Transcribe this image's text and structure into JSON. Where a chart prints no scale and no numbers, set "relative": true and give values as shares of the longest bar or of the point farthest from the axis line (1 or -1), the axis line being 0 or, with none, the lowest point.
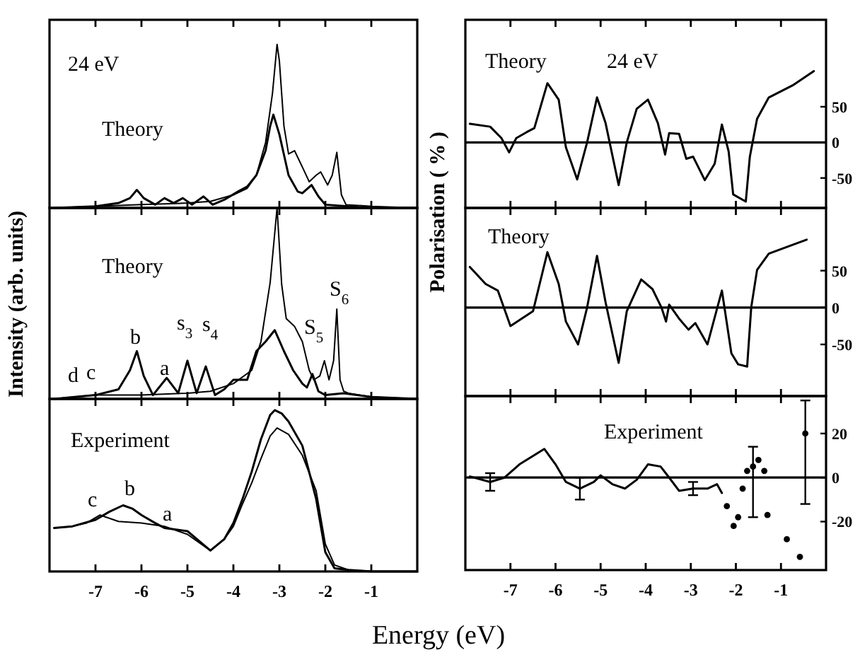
{
  "chart_data": [
    {
      "type": "line",
      "relative": true,
      "tick_labels": false,
      "xlim": [
        -8,
        0
      ],
      "xticks": [
        -7,
        -6,
        -5,
        -4,
        -3,
        -2,
        -1
      ],
      "annotations": [
        "24 eV",
        "Theory"
      ],
      "series": [
        {
          "color": "#000000",
          "x": [
            -7.9,
            -7,
            -6.5,
            -6.25,
            -6.1,
            -5.95,
            -5.7,
            -5.5,
            -5.3,
            -5.1,
            -4.9,
            -4.65,
            -4.45,
            -4.2,
            -3.9,
            -3.7,
            -3.5,
            -3.3,
            -3.2,
            -3.13,
            -3.0,
            -2.8,
            -2.6,
            -2.5,
            -2.3,
            -2.15,
            -2.0,
            -1.5,
            -1,
            0
          ],
          "values": [
            0,
            0.01,
            0.03,
            0.06,
            0.11,
            0.06,
            0.02,
            0.06,
            0.03,
            0.06,
            0.02,
            0.07,
            0.02,
            0.05,
            0.1,
            0.13,
            0.2,
            0.35,
            0.5,
            0.57,
            0.45,
            0.2,
            0.1,
            0.09,
            0.14,
            0.07,
            0.02,
            0.01,
            0,
            0
          ]
        },
        {
          "color": "#000000",
          "x": [
            -7.9,
            -7,
            -6,
            -5,
            -4.5,
            -4,
            -3.7,
            -3.5,
            -3.3,
            -3.15,
            -3.05,
            -3.0,
            -2.9,
            -2.8,
            -2.67,
            -2.5,
            -2.35,
            -2.2,
            -2.1,
            -1.95,
            -1.85,
            -1.75,
            -1.65,
            -1.55,
            -1,
            0
          ],
          "values": [
            0,
            0.01,
            0.02,
            0.03,
            0.04,
            0.08,
            0.12,
            0.2,
            0.4,
            0.7,
            1,
            0.9,
            0.5,
            0.33,
            0.35,
            0.25,
            0.16,
            0.2,
            0.22,
            0.14,
            0.2,
            0.34,
            0.08,
            0.02,
            0.01,
            0
          ]
        }
      ]
    },
    {
      "type": "line",
      "relative": true,
      "tick_labels": false,
      "xlim": [
        -8,
        0
      ],
      "xticks": [
        -7,
        -6,
        -5,
        -4,
        -3,
        -2,
        -1
      ],
      "ylabel": "Intensity (arb. units)",
      "annotations": [
        "Theory",
        "d",
        "c",
        "b",
        "a",
        "s$_{3}$",
        "s$_{4}$",
        "S$_{5}$",
        "S$_{6}$"
      ],
      "series": [
        {
          "color": "#000000",
          "x": [
            -7.9,
            -7,
            -6.5,
            -6.25,
            -6.1,
            -5.95,
            -5.75,
            -5.45,
            -5.2,
            -5.0,
            -4.8,
            -4.6,
            -4.4,
            -4.2,
            -4.0,
            -3.7,
            -3.5,
            -3.3,
            -3.1,
            -2.9,
            -2.7,
            -2.5,
            -2.4,
            -2.28,
            -2.15,
            -2.0,
            -1.6,
            -1,
            0
          ],
          "values": [
            0,
            0.02,
            0.05,
            0.15,
            0.25,
            0.12,
            0.02,
            0.11,
            0.03,
            0.2,
            0.03,
            0.17,
            0.02,
            0.05,
            0.1,
            0.1,
            0.25,
            0.3,
            0.36,
            0.25,
            0.15,
            0.08,
            0.06,
            0.13,
            0.04,
            0.02,
            0.03,
            0.01,
            0
          ]
        },
        {
          "color": "#000000",
          "x": [
            -7.9,
            -7,
            -6,
            -5,
            -4.5,
            -4,
            -3.6,
            -3.4,
            -3.2,
            -3.05,
            -2.95,
            -2.85,
            -2.67,
            -2.5,
            -2.35,
            -2.25,
            -2.12,
            -2.02,
            -1.92,
            -1.82,
            -1.75,
            -1.68,
            -1.6,
            -1.5,
            -1,
            0
          ],
          "values": [
            0,
            0.02,
            0.02,
            0.03,
            0.04,
            0.08,
            0.15,
            0.3,
            0.61,
            1,
            0.6,
            0.42,
            0.38,
            0.3,
            0.15,
            0.1,
            0.12,
            0.2,
            0.1,
            0.2,
            0.47,
            0.1,
            0.04,
            0.03,
            0.01,
            0
          ]
        }
      ]
    },
    {
      "type": "line",
      "relative": true,
      "tick_labels": "x",
      "xlim": [
        -8,
        0
      ],
      "xticks": [
        -7,
        -6,
        -5,
        -4,
        -3,
        -2,
        -1
      ],
      "xlabel": "Energy (eV)",
      "annotations": [
        "Experiment",
        "c",
        "b",
        "a"
      ],
      "series": [
        {
          "color": "#000000",
          "x": [
            -7.9,
            -7.5,
            -7.0,
            -6.7,
            -6.4,
            -6.2,
            -6.0,
            -5.7,
            -5.5,
            -5.0,
            -4.5,
            -4.2,
            -4.0,
            -3.8,
            -3.6,
            -3.4,
            -3.2,
            -3.1,
            -2.95,
            -2.8,
            -2.5,
            -2.2,
            -2.0,
            -1.8,
            -1.5,
            -1,
            0
          ],
          "values": [
            0.27,
            0.28,
            0.32,
            0.37,
            0.41,
            0.39,
            0.35,
            0.3,
            0.27,
            0.25,
            0.13,
            0.2,
            0.3,
            0.45,
            0.62,
            0.82,
            0.97,
            1.0,
            0.98,
            0.93,
            0.78,
            0.45,
            0.12,
            0.02,
            0.01,
            0,
            0
          ]
        },
        {
          "color": "#000000",
          "x": [
            -7.9,
            -7.5,
            -7.2,
            -6.9,
            -6.5,
            -6.0,
            -5.5,
            -5.0,
            -4.5,
            -4.2,
            -4.0,
            -3.8,
            -3.6,
            -3.4,
            -3.2,
            -3.05,
            -2.8,
            -2.5,
            -2.2,
            -2.0,
            -1.8,
            -1.5,
            -1,
            0
          ],
          "values": [
            0.27,
            0.28,
            0.3,
            0.35,
            0.31,
            0.3,
            0.28,
            0.23,
            0.13,
            0.2,
            0.28,
            0.42,
            0.55,
            0.7,
            0.84,
            0.89,
            0.85,
            0.72,
            0.5,
            0.17,
            0.04,
            0.01,
            0,
            0
          ]
        }
      ]
    },
    {
      "type": "line",
      "tick_labels": "y",
      "xlim": [
        -8,
        0
      ],
      "xticks": [
        -7,
        -6,
        -5,
        -4,
        -3,
        -2,
        -1
      ],
      "ylim": [
        -92,
        172
      ],
      "yticks": [
        -50,
        0,
        50
      ],
      "ylabel": "Polarisation ( % )",
      "annotations": [
        "Theory",
        "24 eV"
      ],
      "ref_lines": [
        {
          "axis": "y",
          "value": 0
        }
      ],
      "series": [
        {
          "color": "#000000",
          "x": [
            -7.9,
            -7.45,
            -7.2,
            -7.03,
            -6.87,
            -6.65,
            -6.47,
            -6.18,
            -5.93,
            -5.77,
            -5.52,
            -5.3,
            -5.08,
            -4.89,
            -4.6,
            -4.42,
            -4.2,
            -3.95,
            -3.73,
            -3.57,
            -3.48,
            -3.26,
            -3.1,
            -2.95,
            -2.69,
            -2.47,
            -2.31,
            -2.16,
            -2.06,
            -1.78,
            -1.69,
            -1.53,
            -1.27,
            -0.74,
            -0.27
          ],
          "values": [
            26,
            22,
            6,
            -14,
            6,
            14,
            20,
            83,
            60,
            -7,
            -52,
            0,
            63,
            27,
            -60,
            0,
            47,
            60,
            27,
            -17,
            13,
            12,
            -23,
            -20,
            -53,
            -30,
            25,
            -13,
            -73,
            -83,
            -20,
            33,
            63,
            80,
            100
          ]
        }
      ]
    },
    {
      "type": "line",
      "tick_labels": "y",
      "xlim": [
        -8,
        0
      ],
      "xticks": [
        -7,
        -6,
        -5,
        -4,
        -3,
        -2,
        -1
      ],
      "ylim": [
        -120,
        135
      ],
      "yticks": [
        -50,
        0,
        50
      ],
      "annotations": [
        "Theory"
      ],
      "ref_lines": [
        {
          "axis": "y",
          "value": 0
        }
      ],
      "series": [
        {
          "color": "#000000",
          "x": [
            -7.9,
            -7.55,
            -7.28,
            -7.0,
            -6.75,
            -6.5,
            -6.18,
            -5.93,
            -5.77,
            -5.5,
            -5.3,
            -5.08,
            -4.89,
            -4.6,
            -4.42,
            -4.1,
            -3.85,
            -3.65,
            -3.55,
            -3.48,
            -3.26,
            -3.05,
            -2.9,
            -2.63,
            -2.31,
            -2.1,
            -1.95,
            -1.75,
            -1.66,
            -1.53,
            -1.27,
            -0.74,
            -0.43
          ],
          "values": [
            55,
            32,
            23,
            -25,
            -15,
            -5,
            75,
            32,
            -19,
            -50,
            0,
            70,
            7,
            -75,
            -5,
            38,
            25,
            0,
            -19,
            4,
            -15,
            -30,
            -21,
            -50,
            23,
            -62,
            -77,
            -80,
            0,
            51,
            73,
            85,
            92
          ]
        }
      ]
    },
    {
      "type": "line",
      "xlim": [
        -8,
        0
      ],
      "xticks": [
        -7,
        -6,
        -5,
        -4,
        -3,
        -2,
        -1
      ],
      "ylim": [
        -42,
        37
      ],
      "yticks": [
        -20,
        0,
        20
      ],
      "annotations": [
        "Experiment"
      ],
      "ref_lines": [
        {
          "axis": "y",
          "value": 0
        }
      ],
      "series": [
        {
          "color": "#000000",
          "line_style": "solid",
          "x": [
            -7.9,
            -7.45,
            -7.13,
            -6.8,
            -6.25,
            -6.0,
            -5.77,
            -5.46,
            -5.15,
            -5.0,
            -4.74,
            -4.46,
            -4.2,
            -3.95,
            -3.67,
            -3.48,
            -3.26,
            -2.95,
            -2.63,
            -2.42,
            -2.31
          ],
          "values": [
            0.5,
            -2,
            0,
            6,
            13,
            6,
            -2,
            -5,
            -2,
            1,
            -3,
            -5,
            -1,
            6,
            5,
            0,
            -6,
            -5,
            -5,
            -3,
            -7
          ],
          "errors": [
            null,
            4,
            null,
            null,
            null,
            null,
            null,
            5,
            null,
            null,
            null,
            null,
            null,
            null,
            null,
            null,
            null,
            3,
            null,
            null,
            null
          ]
        },
        {
          "type": "scatter",
          "marker": "circle",
          "color": "#000000",
          "x": [
            -2.2,
            -2.05,
            -1.95,
            -1.85,
            -1.75,
            -1.62,
            -1.5,
            -1.37,
            -1.3,
            -0.87,
            -0.58,
            -0.46
          ],
          "values": [
            -13,
            -22,
            -18,
            -5,
            3,
            5,
            8,
            3,
            -17,
            -28,
            -36,
            20
          ],
          "errors": [
            null,
            null,
            null,
            null,
            null,
            [
              -18,
              14
            ],
            null,
            null,
            null,
            null,
            null,
            [
              -12,
              35
            ]
          ]
        }
      ]
    }
  ]
}
